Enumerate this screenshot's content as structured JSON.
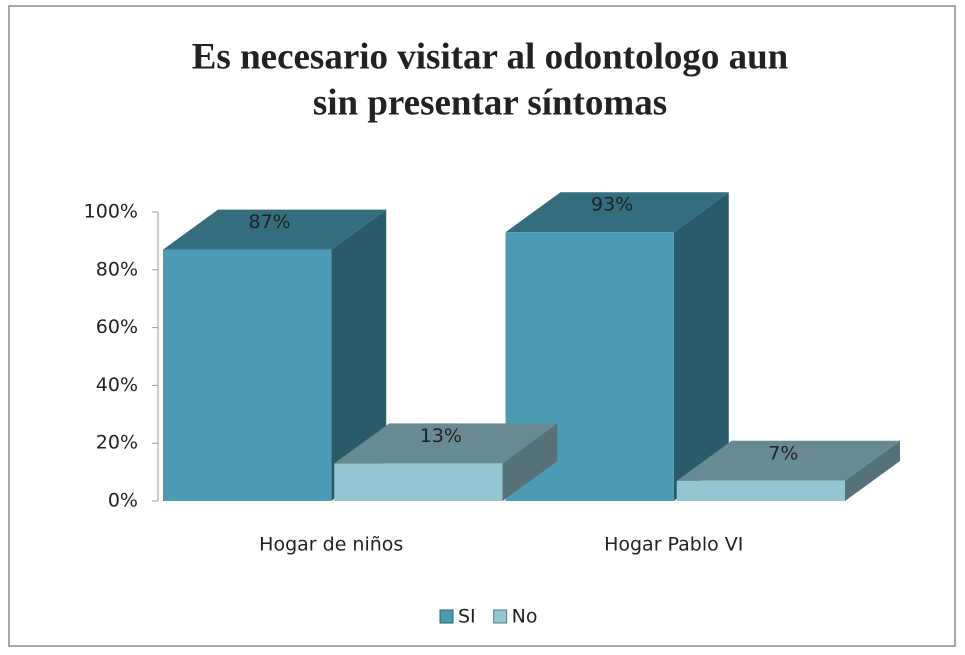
{
  "chart_data": {
    "type": "bar3d",
    "title": "Es necesario visitar al odontologo aun sin presentar síntomas",
    "categories": [
      "Hogar de niños",
      "Hogar Pablo VI"
    ],
    "series": [
      {
        "name": "SI",
        "color": "#4a9cb4",
        "values": [
          87,
          93
        ],
        "value_labels": [
          "87%",
          "93%"
        ]
      },
      {
        "name": "No",
        "color": "#93c5d3",
        "values": [
          13,
          7
        ],
        "value_labels": [
          "13%",
          "7%"
        ]
      }
    ],
    "ylim": [
      0,
      100
    ],
    "yticks": [
      {
        "value": 0,
        "label": "0%"
      },
      {
        "value": 20,
        "label": "20%"
      },
      {
        "value": 40,
        "label": "40%"
      },
      {
        "value": 60,
        "label": "60%"
      },
      {
        "value": 80,
        "label": "80%"
      },
      {
        "value": 100,
        "label": "100%"
      }
    ],
    "legend": "bottom"
  }
}
